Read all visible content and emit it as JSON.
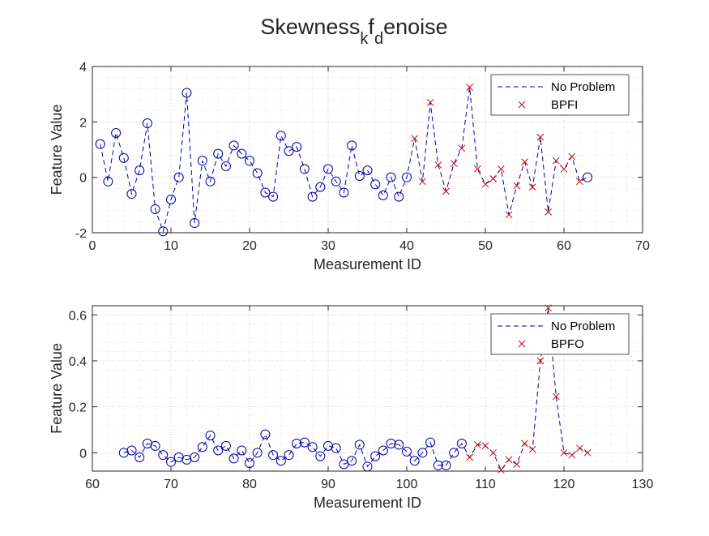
{
  "figure": {
    "title": {
      "main": "Skewness",
      "sub1": "k",
      "mid": "f",
      "sub2": "d",
      "tail": "enoise"
    }
  },
  "colors": {
    "line": "#0000aa",
    "normal_marker": "#0000aa",
    "fault_marker": "#cc0000",
    "axes": "#262626",
    "grid": "#c8c8c8"
  },
  "chart_data": [
    {
      "type": "line",
      "title": "",
      "xlabel": "Measurement ID",
      "ylabel": "Feature Value",
      "xlim": [
        0,
        70
      ],
      "ylim": [
        -2,
        4
      ],
      "xticks": [
        0,
        10,
        20,
        30,
        40,
        50,
        60,
        70
      ],
      "yticks": [
        -2,
        0,
        2,
        4
      ],
      "grid": true,
      "legend": {
        "placement": "top-right",
        "entries": [
          "No Problem",
          "BPFI"
        ]
      },
      "series": [
        {
          "name": "No Problem",
          "marker": "circle",
          "x": [
            1,
            2,
            3,
            4,
            5,
            6,
            7,
            8,
            9,
            10,
            11,
            12,
            13,
            14,
            15,
            16,
            17,
            18,
            19,
            20,
            21,
            22,
            23,
            24,
            25,
            26,
            27,
            28,
            29,
            30,
            31,
            32,
            33,
            34,
            35,
            36,
            37,
            38,
            39,
            40,
            63
          ],
          "y": [
            1.2,
            -0.15,
            1.6,
            0.7,
            -0.6,
            0.25,
            1.95,
            -1.15,
            -1.95,
            -0.8,
            0.0,
            3.05,
            -1.65,
            0.6,
            -0.15,
            0.85,
            0.4,
            1.15,
            0.85,
            0.6,
            0.15,
            -0.55,
            -0.7,
            1.5,
            0.95,
            1.1,
            0.3,
            -0.7,
            -0.35,
            0.3,
            -0.15,
            -0.55,
            1.15,
            0.05,
            0.25,
            -0.25,
            -0.65,
            0.0,
            -0.7,
            0.0,
            0.0
          ]
        },
        {
          "name": "BPFI",
          "marker": "x",
          "x": [
            41,
            42,
            43,
            44,
            45,
            46,
            47,
            48,
            49,
            50,
            51,
            52,
            53,
            54,
            55,
            56,
            57,
            58,
            59,
            60,
            61,
            62
          ],
          "y": [
            1.4,
            -0.15,
            2.7,
            0.45,
            -0.5,
            0.5,
            1.05,
            3.25,
            0.3,
            -0.25,
            -0.05,
            0.3,
            -1.35,
            -0.3,
            0.55,
            -0.35,
            1.45,
            -1.25,
            0.6,
            0.3,
            0.75,
            -0.15
          ]
        }
      ],
      "connection": {
        "x": [
          1,
          2,
          3,
          4,
          5,
          6,
          7,
          8,
          9,
          10,
          11,
          12,
          13,
          14,
          15,
          16,
          17,
          18,
          19,
          20,
          21,
          22,
          23,
          24,
          25,
          26,
          27,
          28,
          29,
          30,
          31,
          32,
          33,
          34,
          35,
          36,
          37,
          38,
          39,
          40,
          41,
          42,
          43,
          44,
          45,
          46,
          47,
          48,
          49,
          50,
          51,
          52,
          53,
          54,
          55,
          56,
          57,
          58,
          59,
          60,
          61,
          62,
          63
        ],
        "y": [
          1.2,
          -0.15,
          1.6,
          0.7,
          -0.6,
          0.25,
          1.95,
          -1.15,
          -1.95,
          -0.8,
          0.0,
          3.05,
          -1.65,
          0.6,
          -0.15,
          0.85,
          0.4,
          1.15,
          0.85,
          0.6,
          0.15,
          -0.55,
          -0.7,
          1.5,
          0.95,
          1.1,
          0.3,
          -0.7,
          -0.35,
          0.3,
          -0.15,
          -0.55,
          1.15,
          0.05,
          0.25,
          -0.25,
          -0.65,
          0.0,
          -0.7,
          0.0,
          1.4,
          -0.15,
          2.7,
          0.45,
          -0.5,
          0.5,
          1.05,
          3.25,
          0.3,
          -0.25,
          -0.05,
          0.3,
          -1.35,
          -0.3,
          0.55,
          -0.35,
          1.45,
          -1.25,
          0.6,
          0.3,
          0.75,
          -0.15,
          0.0
        ]
      }
    },
    {
      "type": "line",
      "title": "",
      "xlabel": "Measurement ID",
      "ylabel": "Feature Value",
      "xlim": [
        60,
        130
      ],
      "ylim": [
        -0.08,
        0.64
      ],
      "xticks": [
        60,
        70,
        80,
        90,
        100,
        110,
        120,
        130
      ],
      "yticks": [
        0,
        0.2,
        0.4,
        0.6
      ],
      "grid": true,
      "legend": {
        "placement": "top-right",
        "entries": [
          "No Problem",
          "BPFO"
        ]
      },
      "series": [
        {
          "name": "No Problem",
          "marker": "circle",
          "x": [
            64,
            65,
            66,
            67,
            68,
            69,
            70,
            71,
            72,
            73,
            74,
            75,
            76,
            77,
            78,
            79,
            80,
            81,
            82,
            83,
            84,
            85,
            86,
            87,
            88,
            89,
            90,
            91,
            92,
            93,
            94,
            95,
            96,
            97,
            98,
            99,
            100,
            101,
            102,
            103,
            104,
            105,
            106,
            107
          ],
          "y": [
            0.0,
            0.01,
            -0.02,
            0.04,
            0.03,
            -0.01,
            -0.04,
            -0.02,
            -0.03,
            -0.02,
            0.025,
            0.075,
            0.01,
            0.03,
            -0.025,
            0.01,
            -0.045,
            0.0,
            0.08,
            -0.01,
            -0.035,
            -0.01,
            0.04,
            0.045,
            0.025,
            -0.015,
            0.03,
            0.02,
            -0.05,
            -0.035,
            0.035,
            -0.06,
            -0.015,
            0.01,
            0.04,
            0.035,
            0.005,
            -0.035,
            0.0,
            0.045,
            -0.055,
            -0.055,
            0.0,
            0.04
          ]
        },
        {
          "name": "BPFO",
          "marker": "x",
          "x": [
            108,
            109,
            110,
            111,
            112,
            113,
            114,
            115,
            116,
            117,
            118,
            119,
            120,
            121,
            122,
            123
          ],
          "y": [
            -0.02,
            0.035,
            0.03,
            0.0,
            -0.075,
            -0.03,
            -0.05,
            0.04,
            0.015,
            0.4,
            0.63,
            0.245,
            0.0,
            -0.01,
            0.02,
            0.0
          ]
        }
      ],
      "connection": {
        "x": [
          64,
          65,
          66,
          67,
          68,
          69,
          70,
          71,
          72,
          73,
          74,
          75,
          76,
          77,
          78,
          79,
          80,
          81,
          82,
          83,
          84,
          85,
          86,
          87,
          88,
          89,
          90,
          91,
          92,
          93,
          94,
          95,
          96,
          97,
          98,
          99,
          100,
          101,
          102,
          103,
          104,
          105,
          106,
          107,
          108,
          109,
          110,
          111,
          112,
          113,
          114,
          115,
          116,
          117,
          118,
          119,
          120,
          121,
          122,
          123
        ],
        "y": [
          0.0,
          0.01,
          -0.02,
          0.04,
          0.03,
          -0.01,
          -0.04,
          -0.02,
          -0.03,
          -0.02,
          0.025,
          0.075,
          0.01,
          0.03,
          -0.025,
          0.01,
          -0.045,
          0.0,
          0.08,
          -0.01,
          -0.035,
          -0.01,
          0.04,
          0.045,
          0.025,
          -0.015,
          0.03,
          0.02,
          -0.05,
          -0.035,
          0.035,
          -0.06,
          -0.015,
          0.01,
          0.04,
          0.035,
          0.005,
          -0.035,
          0.0,
          0.045,
          -0.055,
          -0.055,
          0.0,
          0.04,
          -0.02,
          0.035,
          0.03,
          0.0,
          -0.075,
          -0.03,
          -0.05,
          0.04,
          0.015,
          0.4,
          0.63,
          0.245,
          0.0,
          -0.01,
          0.02,
          0.0
        ]
      }
    }
  ]
}
